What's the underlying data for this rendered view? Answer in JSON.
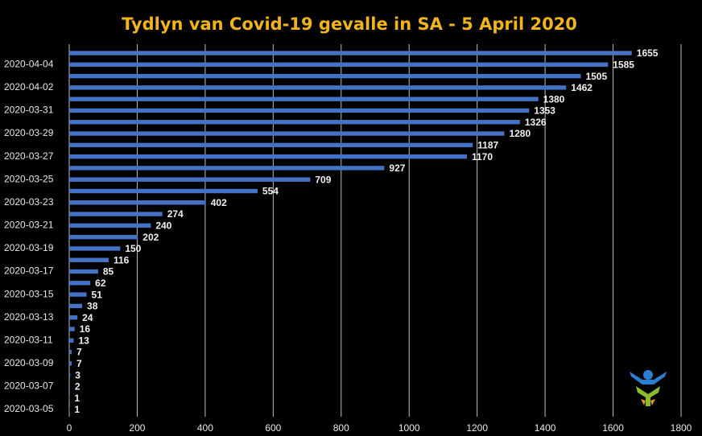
{
  "chart_data": {
    "type": "barh",
    "title": "Tydlyn van Covid-19 gevalle in SA - 5 April 2020",
    "categories": [
      "2020-03-05",
      null,
      "2020-03-07",
      null,
      "2020-03-09",
      null,
      "2020-03-11",
      null,
      "2020-03-13",
      null,
      "2020-03-15",
      null,
      "2020-03-17",
      null,
      "2020-03-19",
      null,
      "2020-03-21",
      null,
      "2020-03-23",
      null,
      "2020-03-25",
      null,
      "2020-03-27",
      null,
      "2020-03-29",
      null,
      "2020-03-31",
      null,
      "2020-04-02",
      null,
      "2020-04-04",
      null
    ],
    "values": [
      1,
      1,
      2,
      3,
      7,
      7,
      13,
      16,
      24,
      38,
      51,
      62,
      85,
      116,
      150,
      202,
      240,
      274,
      402,
      554,
      709,
      927,
      1170,
      1187,
      1280,
      1326,
      1353,
      1380,
      1462,
      1505,
      1585,
      1655
    ],
    "color": "#4472c4",
    "xlim": [
      0,
      1800
    ],
    "xticks": [
      0,
      200,
      400,
      600,
      800,
      1000,
      1200,
      1400,
      1600,
      1800
    ],
    "grid": true
  }
}
